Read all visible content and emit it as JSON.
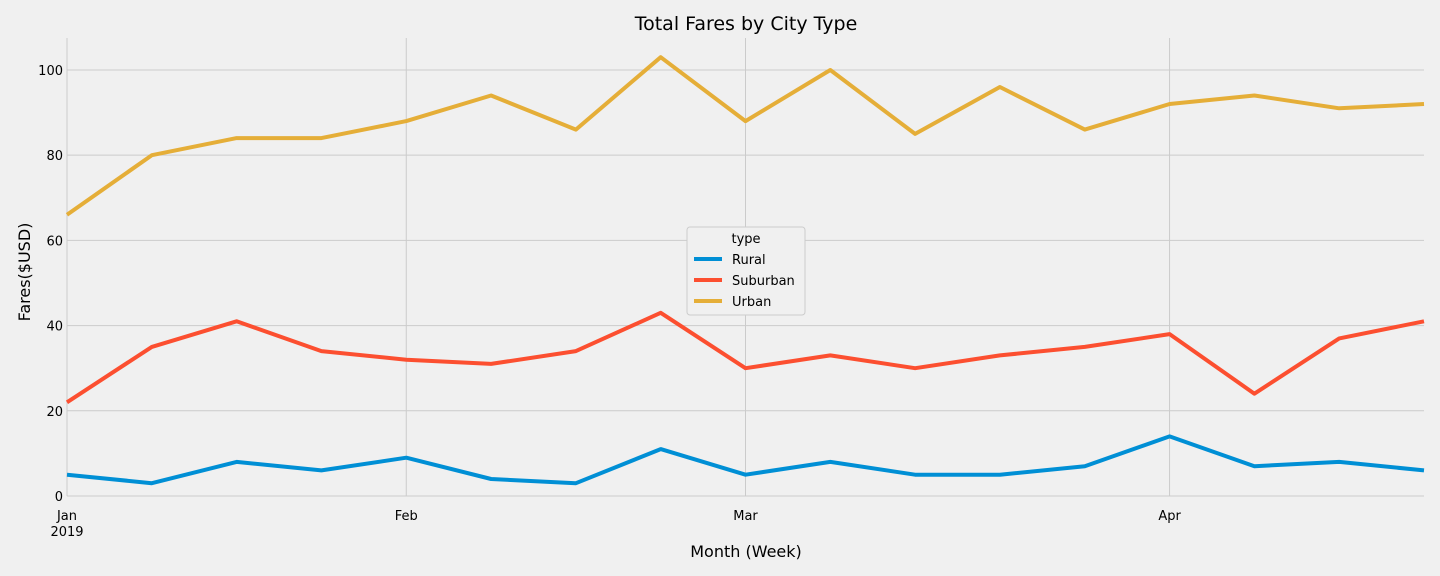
{
  "chart_data": {
    "type": "line",
    "title": "Total Fares by City Type",
    "xlabel": "Month (Week)",
    "ylabel": "Fares($USD)",
    "ylim": [
      0,
      107.5
    ],
    "yticks": [
      0,
      20,
      40,
      60,
      80,
      100
    ],
    "week_count": 17,
    "xticks": [
      {
        "week": 0,
        "label": "Jan",
        "sublabel": "2019"
      },
      {
        "week": 4,
        "label": "Feb",
        "sublabel": ""
      },
      {
        "week": 8,
        "label": "Mar",
        "sublabel": ""
      },
      {
        "week": 13,
        "label": "Apr",
        "sublabel": ""
      }
    ],
    "grid": true,
    "legend": {
      "title": "type",
      "placement": "center"
    },
    "series": [
      {
        "name": "Rural",
        "color": "#008fd5",
        "values": [
          5,
          3,
          8,
          6,
          9,
          4,
          3,
          11,
          5,
          8,
          5,
          5,
          7,
          14,
          7,
          8,
          6
        ]
      },
      {
        "name": "Suburban",
        "color": "#fc4f30",
        "values": [
          22,
          35,
          41,
          34,
          32,
          31,
          34,
          43,
          30,
          33,
          30,
          33,
          35,
          38,
          24,
          37,
          41
        ]
      },
      {
        "name": "Urban",
        "color": "#e5ae38",
        "values": [
          66,
          80,
          84,
          84,
          88,
          94,
          86,
          103,
          88,
          100,
          85,
          96,
          86,
          92,
          94,
          91,
          92
        ]
      }
    ]
  }
}
